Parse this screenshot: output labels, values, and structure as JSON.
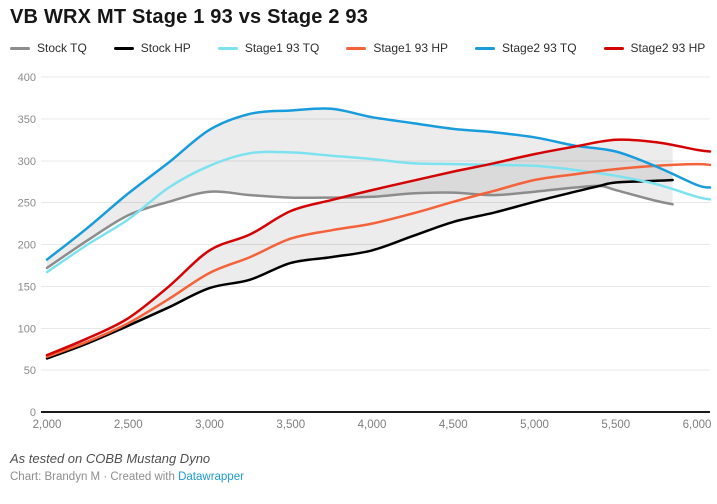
{
  "title": "VB WRX MT Stage 1 93 vs Stage 2 93",
  "footer": {
    "note": "As tested on COBB Mustang Dyno",
    "credit_prefix": "Chart: Brandyn M · Created with ",
    "credit_link": "Datawrapper"
  },
  "colors": {
    "link_blue": "#1d9bd1",
    "grid": "#e8e8e8",
    "axis_baseline": "#1a1a1a",
    "tick_label": "#8a8a8a",
    "band_fill": "rgba(0,0,0,0.075)"
  },
  "chart_data": {
    "type": "line",
    "title": "VB WRX MT Stage 1 93 vs Stage 2 93",
    "xlabel": "",
    "ylabel": "",
    "xlim": [
      2000,
      6080
    ],
    "ylim": [
      0,
      400
    ],
    "grid": "horizontal",
    "legend_position": "top",
    "y_ticks": [
      0,
      50,
      100,
      150,
      200,
      250,
      300,
      350,
      400
    ],
    "x_ticks": [
      {
        "v": 2000,
        "label": "2,000"
      },
      {
        "v": 2500,
        "label": "2,500"
      },
      {
        "v": 3000,
        "label": "3,000"
      },
      {
        "v": 3500,
        "label": "3,500"
      },
      {
        "v": 4000,
        "label": "4,000"
      },
      {
        "v": 4500,
        "label": "4,500"
      },
      {
        "v": 5000,
        "label": "5,000"
      },
      {
        "v": 5500,
        "label": "5,500"
      },
      {
        "v": 6000,
        "label": "6,000"
      }
    ],
    "series": [
      {
        "name": "Stock TQ",
        "color": "#8c8c8c",
        "points": [
          [
            2000,
            172
          ],
          [
            2250,
            205
          ],
          [
            2500,
            235
          ],
          [
            2750,
            251
          ],
          [
            3000,
            263
          ],
          [
            3250,
            259
          ],
          [
            3500,
            256
          ],
          [
            3750,
            256
          ],
          [
            4000,
            257
          ],
          [
            4250,
            261
          ],
          [
            4500,
            262
          ],
          [
            4750,
            259
          ],
          [
            5000,
            263
          ],
          [
            5250,
            268
          ],
          [
            5400,
            270
          ],
          [
            5500,
            265
          ],
          [
            5750,
            252
          ],
          [
            5850,
            248
          ]
        ]
      },
      {
        "name": "Stock HP",
        "color": "#000000",
        "points": [
          [
            2000,
            64
          ],
          [
            2250,
            82
          ],
          [
            2500,
            103
          ],
          [
            2750,
            125
          ],
          [
            3000,
            148
          ],
          [
            3250,
            158
          ],
          [
            3500,
            178
          ],
          [
            3750,
            185
          ],
          [
            4000,
            193
          ],
          [
            4250,
            210
          ],
          [
            4500,
            227
          ],
          [
            4750,
            238
          ],
          [
            5000,
            251
          ],
          [
            5250,
            263
          ],
          [
            5400,
            270
          ],
          [
            5500,
            274
          ],
          [
            5750,
            276
          ],
          [
            5850,
            277
          ]
        ]
      },
      {
        "name": "Stage1 93 TQ",
        "color": "#7de2f0",
        "points": [
          [
            2000,
            167
          ],
          [
            2250,
            200
          ],
          [
            2500,
            230
          ],
          [
            2750,
            268
          ],
          [
            3000,
            294
          ],
          [
            3250,
            309
          ],
          [
            3500,
            310
          ],
          [
            3750,
            306
          ],
          [
            4000,
            302
          ],
          [
            4250,
            297
          ],
          [
            4500,
            296
          ],
          [
            4750,
            295
          ],
          [
            5000,
            294
          ],
          [
            5250,
            289
          ],
          [
            5500,
            282
          ],
          [
            5750,
            272
          ],
          [
            6000,
            257
          ],
          [
            6080,
            254
          ]
        ]
      },
      {
        "name": "Stage1 93 HP",
        "color": "#f4623a",
        "points": [
          [
            2000,
            66
          ],
          [
            2250,
            84
          ],
          [
            2500,
            106
          ],
          [
            2750,
            135
          ],
          [
            3000,
            166
          ],
          [
            3250,
            185
          ],
          [
            3500,
            207
          ],
          [
            3750,
            217
          ],
          [
            4000,
            225
          ],
          [
            4250,
            237
          ],
          [
            4500,
            251
          ],
          [
            4750,
            264
          ],
          [
            5000,
            277
          ],
          [
            5250,
            284
          ],
          [
            5500,
            290
          ],
          [
            5750,
            294
          ],
          [
            6000,
            296
          ],
          [
            6080,
            295
          ]
        ]
      },
      {
        "name": "Stage2 93 TQ",
        "color": "#189cdc",
        "points": [
          [
            2000,
            182
          ],
          [
            2250,
            220
          ],
          [
            2500,
            261
          ],
          [
            2750,
            298
          ],
          [
            3000,
            337
          ],
          [
            3250,
            356
          ],
          [
            3500,
            360
          ],
          [
            3750,
            362
          ],
          [
            4000,
            352
          ],
          [
            4250,
            345
          ],
          [
            4500,
            338
          ],
          [
            4750,
            334
          ],
          [
            5000,
            328
          ],
          [
            5250,
            318
          ],
          [
            5500,
            311
          ],
          [
            5750,
            293
          ],
          [
            6000,
            271
          ],
          [
            6080,
            268
          ]
        ]
      },
      {
        "name": "Stage2 93 HP",
        "color": "#d40404",
        "points": [
          [
            2000,
            68
          ],
          [
            2250,
            88
          ],
          [
            2500,
            112
          ],
          [
            2750,
            150
          ],
          [
            3000,
            193
          ],
          [
            3250,
            212
          ],
          [
            3500,
            240
          ],
          [
            3750,
            253
          ],
          [
            4000,
            265
          ],
          [
            4250,
            276
          ],
          [
            4500,
            287
          ],
          [
            4750,
            297
          ],
          [
            5000,
            308
          ],
          [
            5250,
            317
          ],
          [
            5500,
            325
          ],
          [
            5750,
            322
          ],
          [
            6000,
            313
          ],
          [
            6080,
            311
          ]
        ]
      }
    ],
    "bands": [
      {
        "top": "Stage2 93 TQ",
        "bottom": "Stock TQ"
      },
      {
        "top": "Stage2 93 HP",
        "bottom": "Stock HP"
      }
    ]
  }
}
